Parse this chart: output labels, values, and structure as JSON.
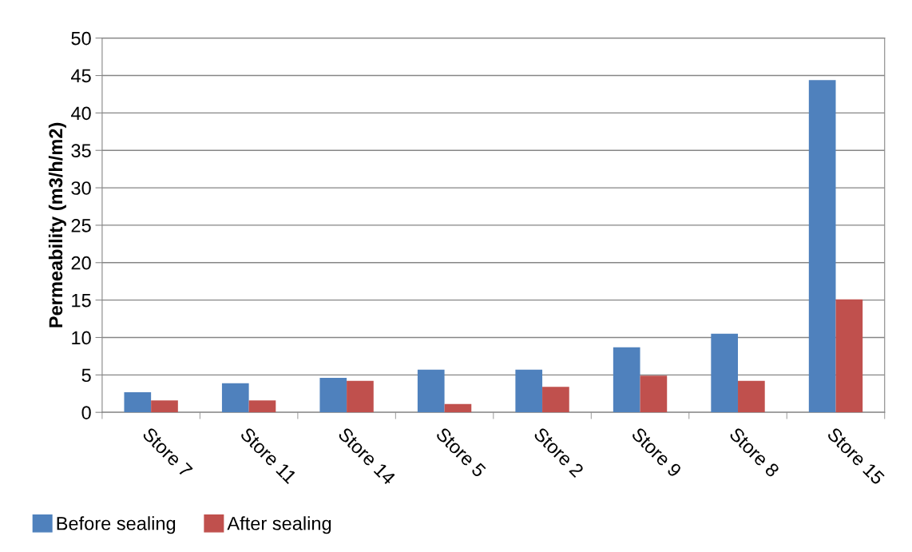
{
  "chart_data": {
    "type": "bar",
    "ylabel": "Permeability (m3/h/m2)",
    "categories": [
      "Store 7",
      "Store 11",
      "Store 14",
      "Store 5",
      "Store 2",
      "Store 9",
      "Store 8",
      "Store 15"
    ],
    "series": [
      {
        "name": "Before sealing",
        "color": "#4f81bd",
        "values": [
          2.7,
          3.9,
          4.6,
          5.7,
          5.7,
          8.7,
          10.5,
          44.4
        ]
      },
      {
        "name": "After sealing",
        "color": "#c0504d",
        "values": [
          1.6,
          1.6,
          4.2,
          1.1,
          3.4,
          4.9,
          4.2,
          15.1
        ]
      }
    ],
    "ylim": [
      0,
      50
    ],
    "yticks": [
      0,
      5,
      10,
      15,
      20,
      25,
      30,
      35,
      40,
      45,
      50
    ],
    "grid": "y",
    "legend": "bottom left"
  }
}
